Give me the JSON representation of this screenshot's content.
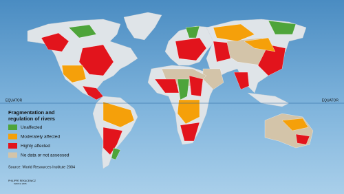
{
  "equator_labels": [
    "EQUATOR",
    "EQUATOR"
  ],
  "legend": {
    "title": [
      "Fragmentation and",
      "regulation of rivers"
    ],
    "items": [
      {
        "label": "Unaffected",
        "color": "#4ea43a"
      },
      {
        "label": "Moderately affected",
        "color": "#f5a00a"
      },
      {
        "label": "Highly affected",
        "color": "#e2141c"
      },
      {
        "label": "No data or not assessed",
        "color": "#d3c4a9"
      }
    ]
  },
  "source": "Source: World Resources Institute 2004",
  "credit": [
    "PHILIPPE REKACEWICZ",
    "MARCH 2005"
  ]
}
